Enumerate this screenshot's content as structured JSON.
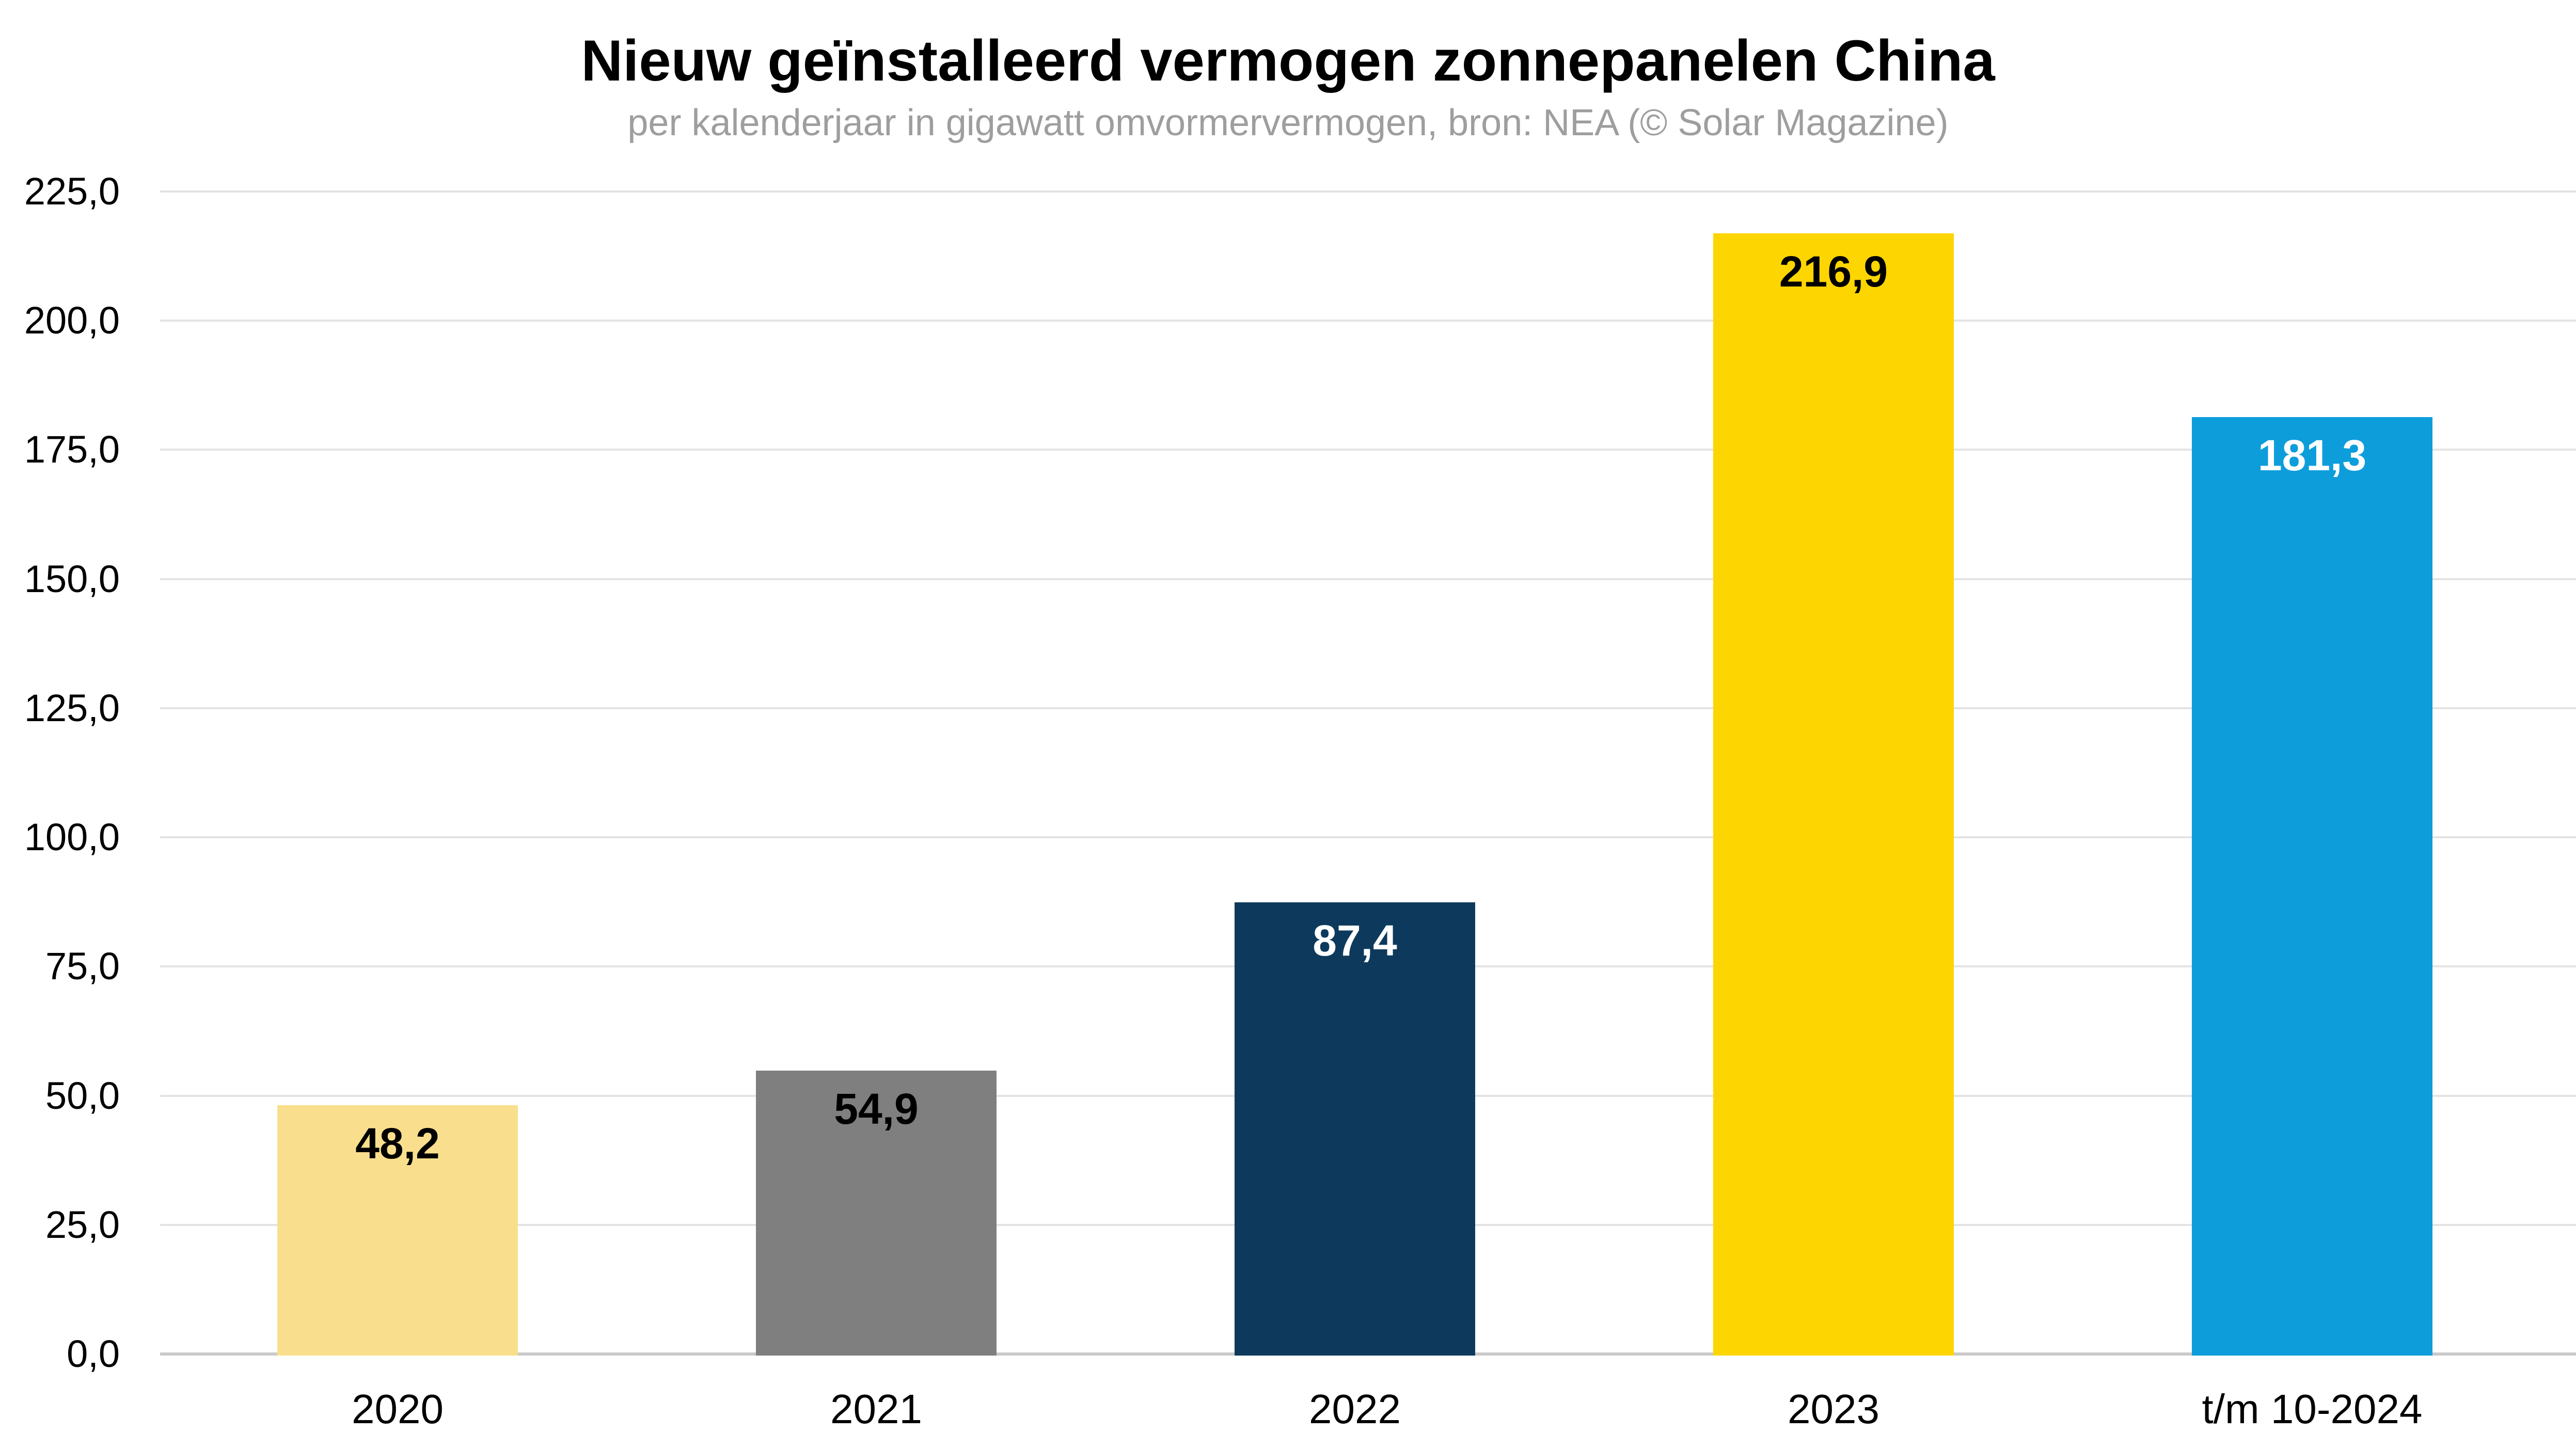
{
  "header": {
    "title": "Nieuw geïnstalleerd vermogen zonnepanelen China",
    "subtitle": "per kalenderjaar in gigawatt omvormervermogen, bron: NEA (© Solar Magazine)"
  },
  "chart_data": {
    "type": "bar",
    "title": "Nieuw geïnstalleerd vermogen zonnepanelen China",
    "subtitle": "per kalenderjaar in gigawatt omvormervermogen, bron: NEA (© Solar Magazine)",
    "categories": [
      "2020",
      "2021",
      "2022",
      "2023",
      "t/m 10-2024"
    ],
    "values": [
      48.2,
      54.9,
      87.4,
      216.9,
      181.3
    ],
    "value_labels": [
      "48,2",
      "54,9",
      "87,4",
      "216,9",
      "181,3"
    ],
    "bar_colors": [
      "#f9df8d",
      "#7f7f7f",
      "#0d3a5c",
      "#fdd500",
      "#0d9ddb"
    ],
    "value_label_colors": [
      "#000000",
      "#000000",
      "#ffffff",
      "#000000",
      "#ffffff"
    ],
    "xlabel": "",
    "ylabel": "",
    "ylim": [
      0,
      237.5
    ],
    "ytick_values": [
      225,
      200,
      175,
      150,
      125,
      100,
      75,
      50,
      25,
      0
    ],
    "ytick_labels": [
      "225,0",
      "200,0",
      "175,0",
      "150,0",
      "125,0",
      "100,0",
      "75,0",
      "50,0",
      "25,0",
      "0,0"
    ],
    "grid": true,
    "legend": false,
    "decimal_separator": ",",
    "colors": {
      "background": "#ffffff",
      "gridline": "#e3e3e3",
      "axis_baseline": "#c9c9c9",
      "title_text": "#000000",
      "subtitle_text": "#9e9e9e",
      "tick_text": "#000000"
    }
  }
}
